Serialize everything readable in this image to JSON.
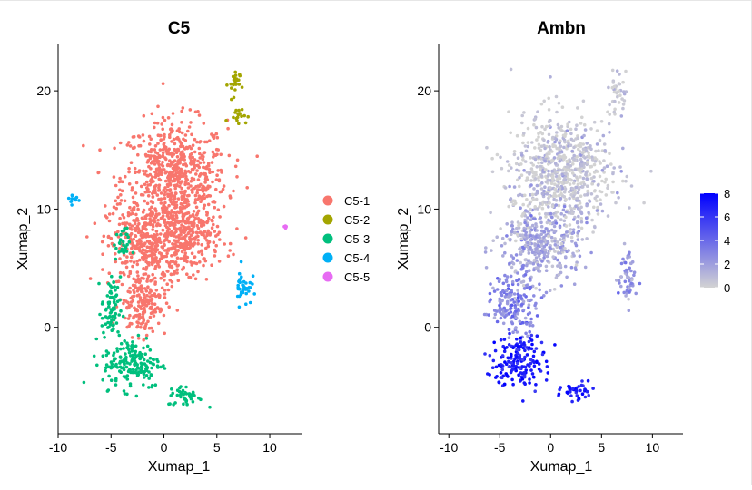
{
  "chart_data": [
    {
      "type": "scatter",
      "title": "C5",
      "xlabel": "Xumap_1",
      "ylabel": "Xumap_2",
      "xlim": [
        -10,
        13
      ],
      "ylim": [
        -9,
        24
      ],
      "xticks": [
        "-10",
        "-5",
        "0",
        "5",
        "10"
      ],
      "yticks": [
        "0",
        "10",
        "20"
      ],
      "legend_position": "right",
      "series": [
        {
          "name": "C5-1",
          "color": "#F8766D",
          "regions": [
            {
              "center": [
                1.0,
                12.5
              ],
              "spread": [
                4.5,
                4.5
              ]
            },
            {
              "center": [
                -1.5,
                7.0
              ],
              "spread": [
                3.5,
                3.0
              ]
            },
            {
              "center": [
                2.5,
                7.5
              ],
              "spread": [
                2.5,
                2.5
              ]
            },
            {
              "center": [
                -2.0,
                2.0
              ],
              "spread": [
                2.0,
                2.5
              ]
            }
          ]
        },
        {
          "name": "C5-2",
          "color": "#A3A500",
          "regions": [
            {
              "center": [
                7.0,
                18.0
              ],
              "spread": [
                0.8,
                0.6
              ]
            },
            {
              "center": [
                6.6,
                20.5
              ],
              "spread": [
                0.5,
                1.3
              ]
            }
          ]
        },
        {
          "name": "C5-3",
          "color": "#00BF7D",
          "regions": [
            {
              "center": [
                -4.0,
                7.0
              ],
              "spread": [
                0.7,
                1.2
              ]
            },
            {
              "center": [
                -5.0,
                1.5
              ],
              "spread": [
                0.8,
                2.5
              ]
            },
            {
              "center": [
                -3.0,
                -3.0
              ],
              "spread": [
                2.5,
                2.0
              ]
            },
            {
              "center": [
                2.0,
                -5.8
              ],
              "spread": [
                1.5,
                0.8
              ]
            }
          ]
        },
        {
          "name": "C5-4",
          "color": "#00B0F6",
          "regions": [
            {
              "center": [
                -8.5,
                10.8
              ],
              "spread": [
                0.6,
                0.5
              ]
            },
            {
              "center": [
                7.5,
                3.5
              ],
              "spread": [
                0.7,
                1.5
              ]
            }
          ]
        },
        {
          "name": "C5-5",
          "color": "#E76BF3",
          "regions": [
            {
              "center": [
                11.5,
                8.5
              ],
              "spread": [
                0.1,
                0.1
              ]
            }
          ]
        }
      ]
    },
    {
      "type": "scatter",
      "title": "Ambn",
      "xlabel": "Xumap_1",
      "ylabel": "Xumap_2",
      "xlim": [
        -11,
        13
      ],
      "ylim": [
        -9,
        24
      ],
      "xticks": [
        "-10",
        "-5",
        "0",
        "5",
        "10"
      ],
      "yticks": [
        "0",
        "10",
        "20"
      ],
      "colorbar": {
        "min": 0,
        "max": 8,
        "ticks": [
          "0",
          "2",
          "4",
          "6",
          "8"
        ],
        "low_color": "#D3D3D3",
        "high_color": "#0000FF"
      },
      "expression_regions": [
        {
          "center": [
            1.0,
            13.0
          ],
          "spread": [
            4.5,
            4.5
          ],
          "level": 0.4
        },
        {
          "center": [
            -1.0,
            7.0
          ],
          "spread": [
            3.5,
            3.0
          ],
          "level": 1.5
        },
        {
          "center": [
            -3.5,
            2.0
          ],
          "spread": [
            2.0,
            2.5
          ],
          "level": 3.0
        },
        {
          "center": [
            -3.0,
            -3.0
          ],
          "spread": [
            2.5,
            2.0
          ],
          "level": 7.0
        },
        {
          "center": [
            2.5,
            -5.5
          ],
          "spread": [
            1.5,
            0.8
          ],
          "level": 7.0
        },
        {
          "center": [
            7.5,
            4.0
          ],
          "spread": [
            0.8,
            2.0
          ],
          "level": 2.0
        },
        {
          "center": [
            6.5,
            20.0
          ],
          "spread": [
            0.8,
            1.5
          ],
          "level": 0.3
        }
      ]
    }
  ],
  "legend": {
    "items": [
      {
        "label": "C5-1",
        "color": "#F8766D"
      },
      {
        "label": "C5-2",
        "color": "#A3A500"
      },
      {
        "label": "C5-3",
        "color": "#00BF7D"
      },
      {
        "label": "C5-4",
        "color": "#00B0F6"
      },
      {
        "label": "C5-5",
        "color": "#E76BF3"
      }
    ]
  }
}
